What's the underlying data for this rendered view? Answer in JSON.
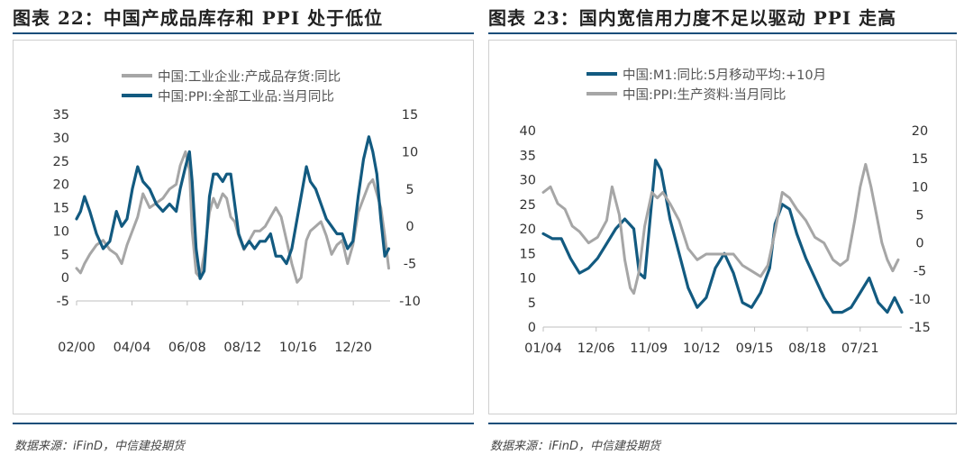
{
  "colors": {
    "gray": "#a6a6a6",
    "blue": "#125a80",
    "rule": "#1a4e7a"
  },
  "figures": [
    {
      "title": "图表 22：中国产成品库存和 PPI 处于低位",
      "source": "数据来源：iFinD，中信建投期货"
    },
    {
      "title": "图表 23：国内宽信用力度不足以驱动 PPI 走高",
      "source": "数据来源：iFinD，中信建投期货"
    }
  ],
  "chart_data": [
    {
      "type": "line",
      "title": "",
      "xlabel": "",
      "ylabel": "",
      "xlim": [
        2000.0,
        2023.6
      ],
      "x_ticks": [
        {
          "label": "02/00",
          "x": 2000.0
        },
        {
          "label": "04/04",
          "x": 2004.17
        },
        {
          "label": "06/08",
          "x": 2008.33
        },
        {
          "label": "08/12",
          "x": 2012.5
        },
        {
          "label": "10/16",
          "x": 2016.67
        },
        {
          "label": "12/20",
          "x": 2020.83
        }
      ],
      "y_left": {
        "lim": [
          -5,
          35
        ],
        "ticks": [
          35,
          30,
          25,
          20,
          15,
          10,
          5,
          0,
          -5
        ]
      },
      "y_right": {
        "lim": [
          -10,
          15
        ],
        "ticks": [
          15,
          10,
          5,
          0,
          -5,
          -10
        ]
      },
      "legend_position": "top-center",
      "series": [
        {
          "name": "中国:工业企业:产成品存货:同比",
          "axis": "left",
          "color": "#a6a6a6",
          "x": [
            2000.0,
            2000.3,
            2000.6,
            2001.0,
            2001.5,
            2002.0,
            2002.5,
            2003.0,
            2003.4,
            2003.8,
            2004.2,
            2004.6,
            2005.0,
            2005.5,
            2006.0,
            2006.5,
            2007.0,
            2007.5,
            2007.8,
            2008.2,
            2008.5,
            2008.7,
            2009.0,
            2009.3,
            2009.6,
            2010.0,
            2010.3,
            2010.6,
            2011.0,
            2011.3,
            2011.6,
            2011.9,
            2012.2,
            2012.6,
            2013.0,
            2013.4,
            2013.8,
            2014.2,
            2014.6,
            2015.0,
            2015.4,
            2015.8,
            2016.2,
            2016.6,
            2016.9,
            2017.3,
            2017.6,
            2018.0,
            2018.4,
            2018.8,
            2019.2,
            2019.6,
            2020.0,
            2020.4,
            2020.8,
            2021.2,
            2021.6,
            2022.0,
            2022.3,
            2022.6,
            2022.9,
            2023.2,
            2023.5
          ],
          "y": [
            2,
            1,
            3,
            5,
            7,
            8,
            6,
            5,
            3,
            7,
            10,
            13,
            18,
            15,
            16,
            17,
            19,
            20,
            24,
            27,
            23,
            10,
            1,
            0,
            5,
            14,
            17,
            15,
            18,
            17,
            13,
            12,
            9,
            6,
            8,
            10,
            10,
            11,
            13,
            15,
            13,
            8,
            3,
            -1,
            0,
            8,
            10,
            11,
            12,
            9,
            5,
            7,
            8,
            3,
            7,
            14,
            17,
            20,
            21,
            18,
            15,
            9,
            2
          ]
        },
        {
          "name": "中国:PPI:全部工业品:当月同比",
          "axis": "right",
          "color": "#125a80",
          "x": [
            2000.0,
            2000.3,
            2000.6,
            2001.0,
            2001.5,
            2002.0,
            2002.5,
            2003.0,
            2003.4,
            2003.8,
            2004.2,
            2004.6,
            2005.0,
            2005.5,
            2006.0,
            2006.5,
            2007.0,
            2007.5,
            2007.8,
            2008.2,
            2008.5,
            2008.7,
            2009.0,
            2009.3,
            2009.6,
            2010.0,
            2010.3,
            2010.6,
            2011.0,
            2011.3,
            2011.6,
            2011.9,
            2012.2,
            2012.6,
            2013.0,
            2013.4,
            2013.8,
            2014.2,
            2014.6,
            2015.0,
            2015.4,
            2015.8,
            2016.2,
            2016.6,
            2016.9,
            2017.3,
            2017.6,
            2018.0,
            2018.4,
            2018.8,
            2019.2,
            2019.6,
            2020.0,
            2020.4,
            2020.8,
            2021.2,
            2021.6,
            2022.0,
            2022.3,
            2022.6,
            2022.9,
            2023.2,
            2023.5
          ],
          "y": [
            1,
            2,
            4,
            2,
            -1,
            -3,
            -2,
            2,
            0,
            1,
            5,
            8,
            6,
            5,
            3,
            2,
            3,
            2,
            5,
            8,
            10,
            6,
            -3,
            -7,
            -6,
            4,
            7,
            7,
            6,
            7,
            7,
            3,
            -1,
            -3,
            -2,
            -3,
            -2,
            -2,
            -1,
            -4,
            -4,
            -5,
            -3,
            1,
            4,
            8,
            6,
            5,
            3,
            1,
            0,
            -1,
            -1,
            -3,
            -2,
            4,
            9,
            12,
            10,
            7,
            1,
            -4,
            -3
          ]
        }
      ]
    },
    {
      "type": "line",
      "title": "",
      "xlabel": "",
      "ylabel": "",
      "xlim": [
        2004.0,
        2023.8
      ],
      "x_ticks": [
        {
          "label": "01/04",
          "x": 2004.0
        },
        {
          "label": "12/06",
          "x": 2006.92
        },
        {
          "label": "11/09",
          "x": 2009.83
        },
        {
          "label": "10/12",
          "x": 2012.75
        },
        {
          "label": "09/15",
          "x": 2015.67
        },
        {
          "label": "08/18",
          "x": 2018.58
        },
        {
          "label": "07/21",
          "x": 2021.5
        }
      ],
      "y_left": {
        "lim": [
          0,
          40
        ],
        "ticks": [
          40,
          35,
          30,
          25,
          20,
          15,
          10,
          5,
          0
        ]
      },
      "y_right": {
        "lim": [
          -15,
          20
        ],
        "ticks": [
          20,
          15,
          10,
          5,
          0,
          -5,
          -10,
          -15
        ]
      },
      "legend_position": "top-center",
      "series": [
        {
          "name": "中国:M1:同比:5月移动平均:+10月",
          "axis": "left",
          "color": "#125a80",
          "x": [
            2004.0,
            2004.5,
            2005.0,
            2005.5,
            2006.0,
            2006.5,
            2007.0,
            2007.5,
            2008.0,
            2008.5,
            2009.0,
            2009.3,
            2009.6,
            2009.9,
            2010.2,
            2010.5,
            2011.0,
            2011.5,
            2012.0,
            2012.5,
            2013.0,
            2013.5,
            2014.0,
            2014.5,
            2015.0,
            2015.5,
            2016.0,
            2016.5,
            2016.8,
            2017.2,
            2017.6,
            2018.0,
            2018.5,
            2019.0,
            2019.5,
            2020.0,
            2020.5,
            2021.0,
            2021.5,
            2022.0,
            2022.5,
            2023.0,
            2023.4,
            2023.8
          ],
          "y": [
            19,
            18,
            18,
            14,
            11,
            12,
            14,
            17,
            20,
            22,
            20,
            11,
            10,
            22,
            34,
            32,
            22,
            15,
            8,
            4,
            6,
            12,
            15,
            11,
            5,
            4,
            7,
            12,
            21,
            25,
            24,
            19,
            14,
            10,
            6,
            3,
            3,
            4,
            7,
            10,
            5,
            3,
            6,
            3
          ]
        },
        {
          "name": "中国:PPI:生产资料:当月同比",
          "axis": "right",
          "color": "#a6a6a6",
          "x": [
            2004.0,
            2004.4,
            2004.8,
            2005.2,
            2005.6,
            2006.0,
            2006.5,
            2007.0,
            2007.5,
            2007.8,
            2008.2,
            2008.5,
            2008.8,
            2009.0,
            2009.3,
            2009.6,
            2010.0,
            2010.3,
            2010.6,
            2011.0,
            2011.5,
            2012.0,
            2012.5,
            2013.0,
            2013.5,
            2014.0,
            2014.5,
            2015.0,
            2015.5,
            2016.0,
            2016.4,
            2016.8,
            2017.2,
            2017.6,
            2018.0,
            2018.5,
            2019.0,
            2019.5,
            2020.0,
            2020.4,
            2020.8,
            2021.2,
            2021.5,
            2021.8,
            2022.1,
            2022.4,
            2022.7,
            2023.0,
            2023.3,
            2023.6
          ],
          "y": [
            9,
            10,
            7,
            6,
            3,
            2,
            0,
            1,
            4,
            10,
            5,
            -3,
            -8,
            -9,
            -5,
            3,
            9,
            8,
            9,
            7,
            4,
            -1,
            -3,
            -2,
            -2,
            -2,
            -2,
            -4,
            -5,
            -6,
            -4,
            2,
            9,
            8,
            6,
            4,
            1,
            0,
            -3,
            -4,
            -3,
            4,
            10,
            14,
            10,
            5,
            0,
            -3,
            -5,
            -3
          ]
        }
      ]
    }
  ]
}
